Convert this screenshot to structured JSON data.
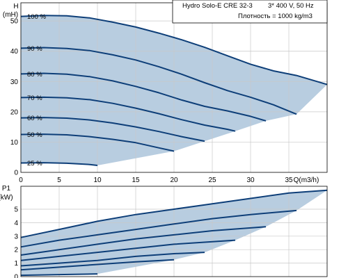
{
  "info_box": {
    "product": "Hydro Solo-E CRE 32-3",
    "supply": "3* 400 V, 50 Hz",
    "density": "Плотность = 1000 kg/m3"
  },
  "colors": {
    "curve": "#0d3e78",
    "fill": "#b8cde0",
    "grid": "#c8c8c8",
    "frame": "#000000"
  },
  "chart_data": [
    {
      "type": "line",
      "title": "",
      "xlabel": "Q(m3/h)",
      "ylabel": "H (mH)",
      "y_label_lines": [
        "H",
        "(mH)"
      ],
      "xlim": [
        0,
        40
      ],
      "ylim": [
        0,
        56
      ],
      "x_ticks": [
        0,
        5,
        10,
        15,
        20,
        25,
        30,
        35
      ],
      "y_ticks": [
        0,
        10,
        20,
        30,
        40,
        50
      ],
      "grid": true,
      "legend": "none",
      "series": [
        {
          "name": "100 %",
          "x": [
            0,
            3,
            6,
            9,
            12,
            15,
            18,
            21,
            24,
            27,
            30,
            33,
            36,
            40
          ],
          "y": [
            51.5,
            51.8,
            51.7,
            51.0,
            49.6,
            48.0,
            46.0,
            43.8,
            41.3,
            38.5,
            35.7,
            33.5,
            32.0,
            29.0
          ]
        },
        {
          "name": "90 %",
          "x": [
            0,
            3,
            6,
            9,
            12,
            15,
            18,
            21,
            24,
            27,
            30,
            33,
            36
          ],
          "y": [
            41.0,
            41.2,
            40.9,
            40.2,
            38.8,
            37.1,
            34.9,
            32.4,
            29.6,
            27.0,
            24.8,
            22.3,
            19.2
          ]
        },
        {
          "name": "80 %",
          "x": [
            0,
            3,
            6,
            9,
            12,
            15,
            18,
            21,
            24,
            27,
            30,
            32
          ],
          "y": [
            32.5,
            32.7,
            32.4,
            31.6,
            30.2,
            28.4,
            26.3,
            23.9,
            21.8,
            20.3,
            18.5,
            17.0
          ]
        },
        {
          "name": "70 %",
          "x": [
            0,
            3,
            6,
            9,
            12,
            15,
            18,
            21,
            24,
            27,
            28
          ],
          "y": [
            24.7,
            24.8,
            24.6,
            24.0,
            22.8,
            21.2,
            19.4,
            17.4,
            15.6,
            14.2,
            13.6
          ]
        },
        {
          "name": "60 %",
          "x": [
            0,
            3,
            6,
            9,
            12,
            15,
            18,
            21,
            24
          ],
          "y": [
            18.0,
            18.1,
            17.9,
            17.3,
            16.3,
            15.0,
            13.5,
            11.8,
            10.3
          ]
        },
        {
          "name": "50 %",
          "x": [
            0,
            3,
            6,
            9,
            12,
            15,
            18,
            20
          ],
          "y": [
            12.5,
            12.6,
            12.4,
            11.8,
            10.9,
            9.8,
            8.1,
            7.0
          ]
        },
        {
          "name": "25 %",
          "x": [
            0,
            3,
            6,
            9,
            10
          ],
          "y": [
            3.1,
            3.2,
            3.0,
            2.6,
            2.3
          ]
        }
      ]
    },
    {
      "type": "line",
      "title": "",
      "xlabel": "",
      "ylabel": "P1 (kW)",
      "y_label_lines": [
        "P1",
        "(kW)"
      ],
      "xlim": [
        0,
        40
      ],
      "ylim": [
        0,
        6.7
      ],
      "y_ticks": [
        0,
        1,
        2,
        3,
        4,
        5
      ],
      "grid": true,
      "legend": "none",
      "series": [
        {
          "name": "100 %",
          "x": [
            0,
            5,
            10,
            15,
            20,
            25,
            30,
            35,
            40
          ],
          "y": [
            2.9,
            3.5,
            4.1,
            4.6,
            5.0,
            5.4,
            5.8,
            6.2,
            6.4
          ]
        },
        {
          "name": "90 %",
          "x": [
            0,
            5,
            10,
            15,
            20,
            25,
            30,
            36
          ],
          "y": [
            2.2,
            2.7,
            3.1,
            3.5,
            3.9,
            4.3,
            4.6,
            4.9
          ]
        },
        {
          "name": "80 %",
          "x": [
            0,
            5,
            10,
            15,
            20,
            25,
            32
          ],
          "y": [
            1.6,
            2.0,
            2.4,
            2.8,
            3.1,
            3.4,
            3.7
          ]
        },
        {
          "name": "70 %",
          "x": [
            0,
            5,
            10,
            15,
            20,
            28
          ],
          "y": [
            1.2,
            1.5,
            1.8,
            2.1,
            2.4,
            2.7
          ]
        },
        {
          "name": "60 %",
          "x": [
            0,
            5,
            10,
            15,
            20,
            24
          ],
          "y": [
            0.8,
            1.0,
            1.2,
            1.5,
            1.7,
            1.8
          ]
        },
        {
          "name": "50 %",
          "x": [
            0,
            5,
            10,
            15,
            20
          ],
          "y": [
            0.5,
            0.7,
            0.9,
            1.1,
            1.25
          ]
        },
        {
          "name": "25 %",
          "x": [
            0,
            5,
            10
          ],
          "y": [
            0.1,
            0.15,
            0.2
          ]
        }
      ]
    }
  ]
}
